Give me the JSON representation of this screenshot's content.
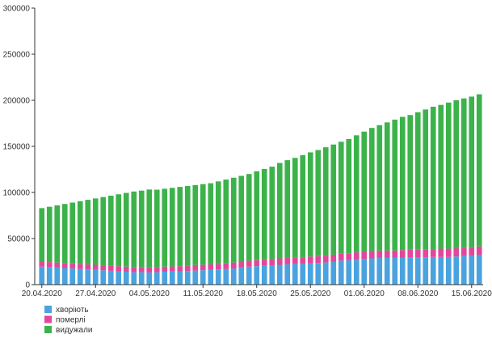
{
  "chart_data": {
    "type": "bar",
    "stacked": true,
    "start_date": "20.04.2020",
    "x_tick_labels": [
      "20.04.2020",
      "27.04.2020",
      "04.05.2020",
      "11.05.2020",
      "18.05.2020",
      "25.05.2020",
      "01.06.2020",
      "08.06.2020",
      "15.06.2020"
    ],
    "ylim": [
      0,
      300000
    ],
    "y_ticks": [
      0,
      50000,
      100000,
      150000,
      200000,
      250000,
      300000
    ],
    "y_tick_labels": [
      "0",
      "50000",
      "100000",
      "150000",
      "200000",
      "250000",
      "300000"
    ],
    "grid": false,
    "legend_position": "bottom-left",
    "colors": {
      "active": "#4aa3df",
      "deaths": "#e0489b",
      "recovered": "#3cb34a"
    },
    "series": [
      {
        "key": "active",
        "name": "хворіють",
        "values": [
          19500,
          19000,
          18500,
          18000,
          17500,
          17000,
          16500,
          16000,
          15500,
          15000,
          14500,
          14000,
          13500,
          13500,
          13200,
          13500,
          14000,
          14200,
          14500,
          14800,
          15200,
          15600,
          16000,
          16500,
          17000,
          17500,
          18500,
          19500,
          20000,
          20500,
          21000,
          21500,
          22000,
          22500,
          22500,
          23000,
          23500,
          24000,
          25000,
          26000,
          26500,
          27000,
          28000,
          28500,
          29000,
          29000,
          29000,
          29000,
          29500,
          29500,
          29500,
          30000,
          30000,
          30000,
          30500,
          31000,
          31500,
          32000
        ]
      },
      {
        "key": "deaths",
        "name": "померлі",
        "values": [
          5500,
          5500,
          5500,
          5500,
          5500,
          5500,
          5500,
          5500,
          5500,
          5500,
          5500,
          5500,
          5500,
          5500,
          5500,
          5500,
          5500,
          5500,
          5500,
          6000,
          6000,
          6000,
          6000,
          6000,
          6000,
          6500,
          6500,
          6500,
          6500,
          7000,
          7000,
          7000,
          7000,
          7000,
          7000,
          7500,
          7500,
          7500,
          7500,
          7500,
          7500,
          8000,
          8000,
          8000,
          8000,
          8000,
          8000,
          8500,
          8500,
          8500,
          8500,
          8500,
          9000,
          9000,
          9000,
          9000,
          9000,
          9500
        ]
      },
      {
        "key": "recovered",
        "name": "видужали",
        "values": [
          58000,
          60000,
          62000,
          64000,
          66000,
          68000,
          70000,
          72000,
          74000,
          76000,
          78000,
          80000,
          82000,
          83000,
          84500,
          84000,
          84500,
          85300,
          86000,
          86200,
          86800,
          87400,
          88000,
          89500,
          91000,
          92000,
          93000,
          94000,
          96500,
          98000,
          100000,
          103500,
          106000,
          108000,
          111000,
          113000,
          115000,
          117500,
          119500,
          121500,
          124000,
          127000,
          130000,
          133500,
          136000,
          139000,
          142000,
          144500,
          146000,
          149000,
          152000,
          154500,
          156000,
          158500,
          160500,
          162000,
          163500,
          165000
        ]
      }
    ]
  }
}
